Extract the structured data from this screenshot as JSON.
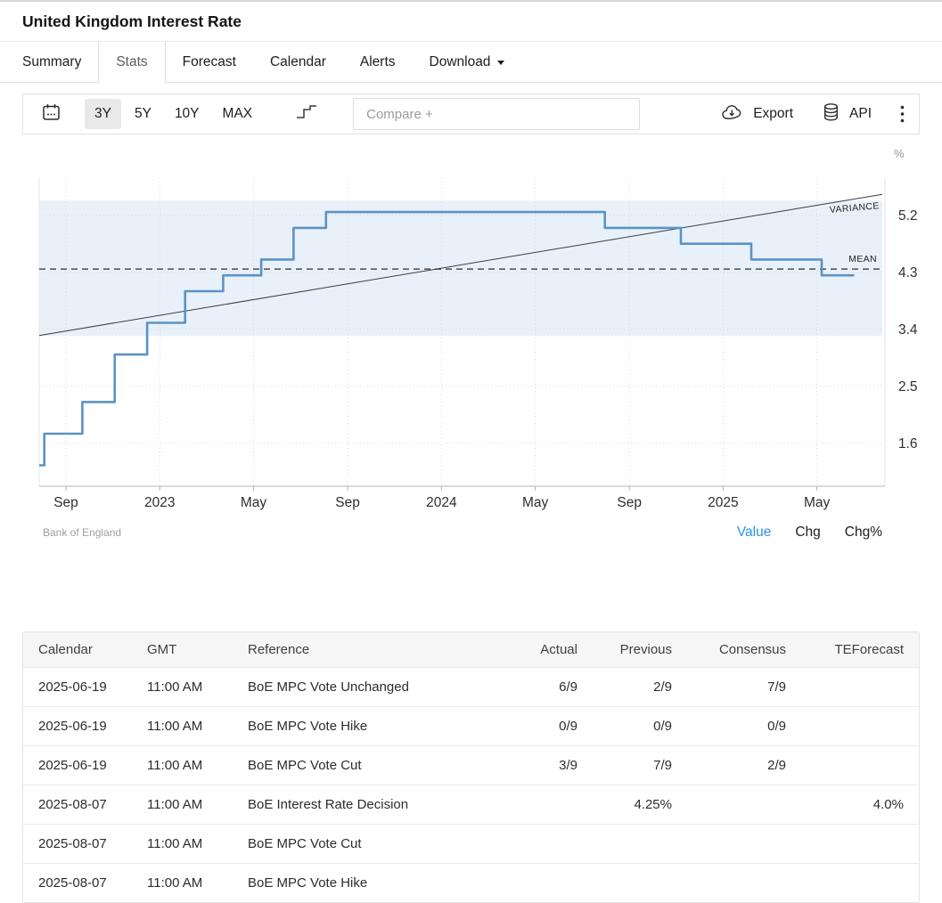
{
  "page": {
    "title": "United Kingdom Interest Rate"
  },
  "tabs": [
    {
      "label": "Summary"
    },
    {
      "label": "Stats",
      "active": true
    },
    {
      "label": "Forecast"
    },
    {
      "label": "Calendar"
    },
    {
      "label": "Alerts"
    },
    {
      "label": "Download",
      "has_dropdown": true
    }
  ],
  "toolbar": {
    "ranges": [
      {
        "label": "3Y",
        "active": true
      },
      {
        "label": "5Y"
      },
      {
        "label": "10Y"
      },
      {
        "label": "MAX"
      }
    ],
    "compare_placeholder": "Compare +",
    "export_label": "Export",
    "api_label": "API"
  },
  "icons": {
    "toolbar": [
      "calendar-icon",
      "step-line-icon",
      "cloud-download-icon",
      "database-icon",
      "kebab-menu-icon"
    ],
    "tabs": [
      "caret-down-icon"
    ]
  },
  "chart_footer": {
    "source": "Bank of England",
    "links": [
      {
        "label": "Value",
        "active": true
      },
      {
        "label": "Chg"
      },
      {
        "label": "Chg%"
      }
    ],
    "active_link_color": "#2e90e5"
  },
  "chart_data": {
    "type": "line",
    "subtype": "step",
    "title": "United Kingdom Interest Rate",
    "unit": "%",
    "source": "Bank of England",
    "grid": "dotted",
    "xlim": [
      2022.572,
      2025.565
    ],
    "ylim": [
      0.92,
      5.8
    ],
    "y_ticks": [
      5.2,
      4.3,
      3.4,
      2.5,
      1.6
    ],
    "x_ticks": [
      {
        "t": 2022.667,
        "label": "Sep"
      },
      {
        "t": 2023.0,
        "label": "2023"
      },
      {
        "t": 2023.333,
        "label": "May"
      },
      {
        "t": 2023.667,
        "label": "Sep"
      },
      {
        "t": 2024.0,
        "label": "2024"
      },
      {
        "t": 2024.333,
        "label": "May"
      },
      {
        "t": 2024.667,
        "label": "Sep"
      },
      {
        "t": 2025.0,
        "label": "2025"
      },
      {
        "t": 2025.333,
        "label": "May"
      }
    ],
    "band": {
      "low": 3.29,
      "high": 5.43,
      "color": "#e8f1f9"
    },
    "mean": {
      "label": "MEAN",
      "value": 4.35
    },
    "variance": {
      "label": "VARIANCE",
      "line": [
        [
          2022.572,
          3.3
        ],
        [
          2025.565,
          5.53
        ]
      ],
      "color": "#3c3c3c"
    },
    "series": [
      {
        "name": "United Kingdom Interest Rate",
        "color": "#5d92c4",
        "points": [
          [
            2022.572,
            1.25
          ],
          [
            2022.59,
            1.75
          ],
          [
            2022.725,
            2.25
          ],
          [
            2022.84,
            3.0
          ],
          [
            2022.955,
            3.5
          ],
          [
            2023.09,
            4.0
          ],
          [
            2023.225,
            4.25
          ],
          [
            2023.36,
            4.5
          ],
          [
            2023.475,
            5.0
          ],
          [
            2023.59,
            5.25
          ],
          [
            2024.58,
            5.0
          ],
          [
            2024.85,
            4.75
          ],
          [
            2025.1,
            4.5
          ],
          [
            2025.35,
            4.25
          ],
          [
            2025.465,
            4.25
          ]
        ]
      }
    ]
  },
  "table": {
    "headers": [
      "Calendar",
      "GMT",
      "Reference",
      "Actual",
      "Previous",
      "Consensus",
      "TEForecast"
    ],
    "rows": [
      [
        "2025-06-19",
        "11:00 AM",
        "BoE MPC Vote Unchanged",
        "6/9",
        "2/9",
        "7/9",
        ""
      ],
      [
        "2025-06-19",
        "11:00 AM",
        "BoE MPC Vote Hike",
        "0/9",
        "0/9",
        "0/9",
        ""
      ],
      [
        "2025-06-19",
        "11:00 AM",
        "BoE MPC Vote Cut",
        "3/9",
        "7/9",
        "2/9",
        ""
      ],
      [
        "2025-08-07",
        "11:00 AM",
        "BoE Interest Rate Decision",
        "",
        "4.25%",
        "",
        "4.0%"
      ],
      [
        "2025-08-07",
        "11:00 AM",
        "BoE MPC Vote Cut",
        "",
        "",
        "",
        ""
      ],
      [
        "2025-08-07",
        "11:00 AM",
        "BoE MPC Vote Hike",
        "",
        "",
        "",
        ""
      ]
    ]
  }
}
